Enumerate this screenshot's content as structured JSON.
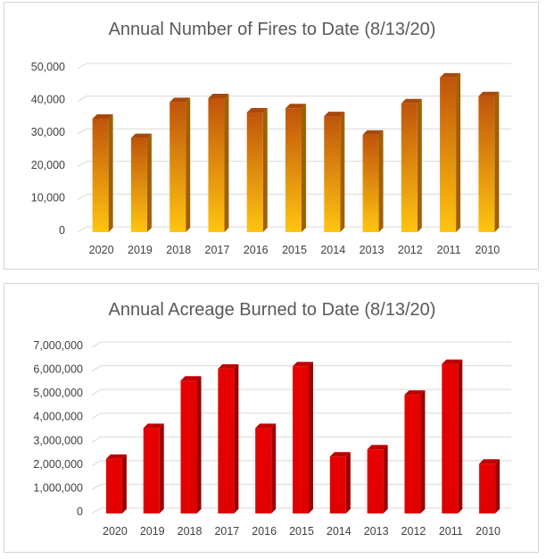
{
  "chart_data": [
    {
      "type": "bar",
      "title": "Annual Number of Fires to Date (8/13/20)",
      "categories": [
        "2020",
        "2019",
        "2018",
        "2017",
        "2016",
        "2015",
        "2014",
        "2013",
        "2012",
        "2011",
        "2010"
      ],
      "values": [
        34700,
        28800,
        39800,
        41000,
        36600,
        37900,
        35500,
        29800,
        39400,
        47300,
        41600
      ],
      "yticks": [
        "0",
        "10,000",
        "20,000",
        "30,000",
        "40,000",
        "50,000"
      ],
      "ylim": [
        0,
        50000
      ],
      "xlabel": "",
      "ylabel": "",
      "grid": true,
      "colors": {
        "bar_top": "#c0540c",
        "bar_bottom": "#ffc510",
        "bar_side": "#a06000",
        "bar_cap": "#a8480a"
      }
    },
    {
      "type": "bar",
      "title": "Annual Acreage Burned to Date (8/13/20)",
      "categories": [
        "2020",
        "2019",
        "2018",
        "2017",
        "2016",
        "2015",
        "2014",
        "2013",
        "2012",
        "2011",
        "2010"
      ],
      "values": [
        2300000,
        3600000,
        5600000,
        6100000,
        3600000,
        6200000,
        2400000,
        2700000,
        5000000,
        6300000,
        2100000
      ],
      "yticks": [
        "0",
        "1,000,000",
        "2,000,000",
        "3,000,000",
        "4,000,000",
        "5,000,000",
        "6,000,000",
        "7,000,000"
      ],
      "ylim": [
        0,
        7000000
      ],
      "xlabel": "",
      "ylabel": "",
      "grid": true,
      "colors": {
        "bar_top": "#e80000",
        "bar_bottom": "#e00000",
        "bar_side": "#9c0000",
        "bar_cap": "#c00000"
      }
    }
  ]
}
